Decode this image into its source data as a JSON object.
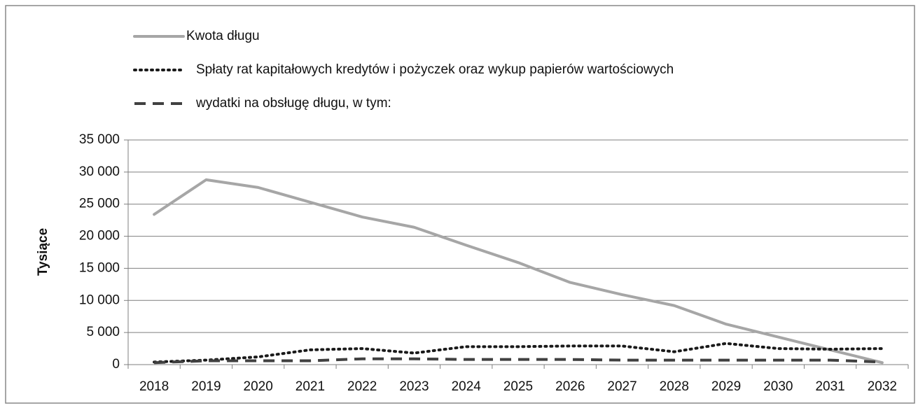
{
  "chart_data": {
    "type": "line",
    "y_label": "Tysiące",
    "categories": [
      "2018",
      "2019",
      "2020",
      "2021",
      "2022",
      "2023",
      "2024",
      "2025",
      "2026",
      "2027",
      "2028",
      "2029",
      "2030",
      "2031",
      "2032"
    ],
    "series": [
      {
        "name": "Kwota długu",
        "color": "#a6a6a6",
        "style": "solid",
        "values": [
          23400,
          28800,
          27600,
          25300,
          23000,
          21400,
          18600,
          15900,
          12800,
          10900,
          9200,
          6300,
          4300,
          2300,
          300
        ]
      },
      {
        "name": "Spłaty rat kapitałowych kredytów i pożyczek oraz wykup papierów wartościowych",
        "color": "#1a1a1a",
        "style": "dotted",
        "values": [
          400,
          700,
          1200,
          2300,
          2500,
          1800,
          2800,
          2800,
          2900,
          2900,
          2000,
          3300,
          2500,
          2400,
          2500
        ]
      },
      {
        "name": "wydatki na obsługę długu, w tym:",
        "color": "#404040",
        "style": "dashed",
        "values": [
          300,
          600,
          600,
          600,
          900,
          900,
          800,
          800,
          800,
          700,
          700,
          700,
          700,
          700,
          400
        ]
      }
    ],
    "ylim": [
      0,
      35000
    ],
    "yticks": [
      0,
      {
        "value": 5000,
        "label": "5 000"
      },
      {
        "value": 10000,
        "label": "10 000"
      },
      {
        "value": 15000,
        "label": "15 000"
      },
      {
        "value": 20000,
        "label": "20 000"
      },
      {
        "value": 25000,
        "label": "25 000"
      },
      {
        "value": 30000,
        "label": "30 000"
      },
      {
        "value": 35000,
        "label": "35 000"
      }
    ],
    "grid": true,
    "legend": "top-left"
  }
}
